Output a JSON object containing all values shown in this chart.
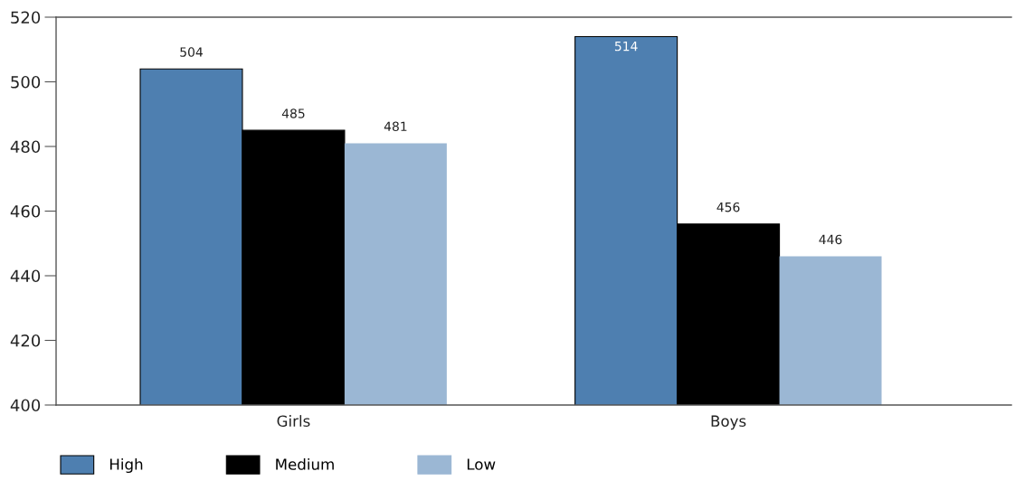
{
  "chart_data": {
    "type": "bar",
    "categories": [
      "Girls",
      "Boys"
    ],
    "series": [
      {
        "name": "High",
        "color": "#4e7fb0",
        "values": [
          504,
          514
        ]
      },
      {
        "name": "Medium",
        "color": "#000000",
        "values": [
          485,
          456
        ]
      },
      {
        "name": "Low",
        "color": "#9bb7d4",
        "values": [
          481,
          446
        ]
      }
    ],
    "ylim": [
      400,
      520
    ],
    "yticks": [
      400,
      420,
      440,
      460,
      480,
      500,
      520
    ],
    "data_labels": true,
    "grid": false,
    "legend": "bottom left"
  }
}
